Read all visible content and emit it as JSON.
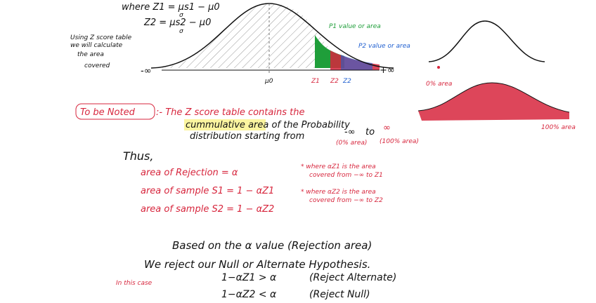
{
  "formulas": {
    "z1": "where Z1 = μs1 − μ0",
    "z1_den": "σ",
    "z2": "Z2 = μs2 − μ0",
    "z2_den": "σ"
  },
  "note_left": [
    "Using Z score table",
    "we will calculate",
    "the area",
    "covered"
  ],
  "curve": {
    "neg_inf": "-∞",
    "mu0": "μ0",
    "z1": "Z1",
    "z2a": "Z2",
    "z2b": "Z2",
    "pos_inf": "+∞",
    "p1": "P1 value or area",
    "p2": "P2 value or area"
  },
  "right": {
    "zero": "0% area",
    "hundred": "100% area"
  },
  "noted": {
    "label": "To be Noted",
    "line1": ":- The Z score table contains the",
    "line2": "cummulative area of the Probability",
    "line3": "distribution starting from",
    "from": "-∞",
    "to": "to",
    "end": "∞",
    "from_note": "(0% area)",
    "end_note": "(100% area)"
  },
  "thus": {
    "title": "Thus,",
    "rejection": "area of Rejection = α",
    "s1": "area of sample S1 = 1 − αZ1",
    "s2": "area of sample S2 = 1 − αZ2",
    "note1a": "* where αZ1 is the area",
    "note1b": "covered from −∞ to Z1",
    "note2a": "* where αZ2 is the area",
    "note2b": "covered from −∞ to Z2"
  },
  "bottom": {
    "line1": "Based on the α value (Rejection area)",
    "line2": "We reject our Null or Alternate Hypothesis.",
    "case": "In this case",
    "c1": "1−αZ1 > α",
    "r1": "(Reject Alternate)",
    "c2": "1−αZ2 < α",
    "r2": "(Reject Null)"
  }
}
